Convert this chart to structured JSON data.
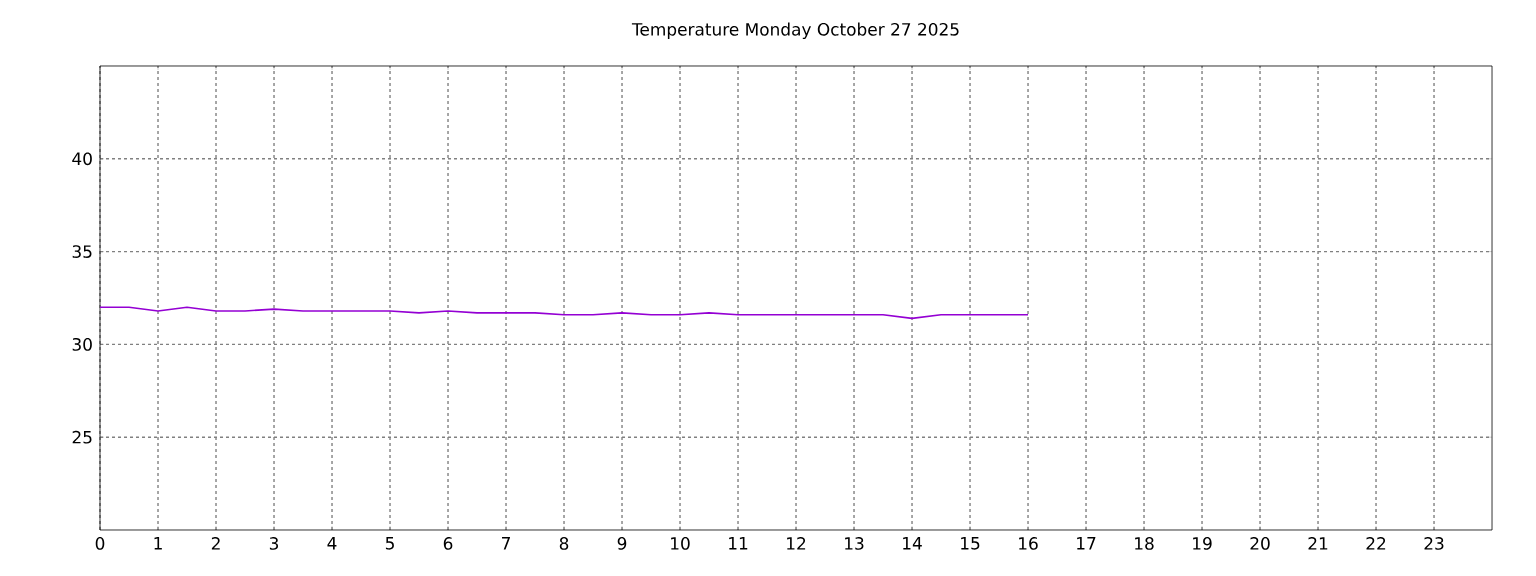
{
  "chart_data": {
    "type": "line",
    "title": "Temperature Monday October 27 2025",
    "x": [
      0,
      0.5,
      1,
      1.5,
      2,
      2.5,
      3,
      3.5,
      4,
      4.5,
      5,
      5.5,
      6,
      6.5,
      7,
      7.5,
      8,
      8.5,
      9,
      9.5,
      10,
      10.5,
      11,
      11.5,
      12,
      12.5,
      13,
      13.5,
      14,
      14.5,
      15,
      15.5,
      16
    ],
    "series": [
      {
        "color": "#9400d3",
        "values": [
          32.0,
          32.0,
          31.8,
          32.0,
          31.8,
          31.8,
          31.9,
          31.8,
          31.8,
          31.8,
          31.8,
          31.7,
          31.8,
          31.7,
          31.7,
          31.7,
          31.6,
          31.6,
          31.7,
          31.6,
          31.6,
          31.7,
          31.6,
          31.6,
          31.6,
          31.6,
          31.6,
          31.6,
          31.4,
          31.6,
          31.6,
          31.6,
          31.6
        ]
      }
    ],
    "xlim": [
      0,
      24
    ],
    "xticks": [
      0,
      1,
      2,
      3,
      4,
      5,
      6,
      7,
      8,
      9,
      10,
      11,
      12,
      13,
      14,
      15,
      16,
      17,
      18,
      19,
      20,
      21,
      22,
      23
    ],
    "ylim": [
      20,
      45
    ],
    "yticks": [
      25,
      30,
      35,
      40
    ],
    "grid": true,
    "marker": "none",
    "line_style": "solid"
  }
}
